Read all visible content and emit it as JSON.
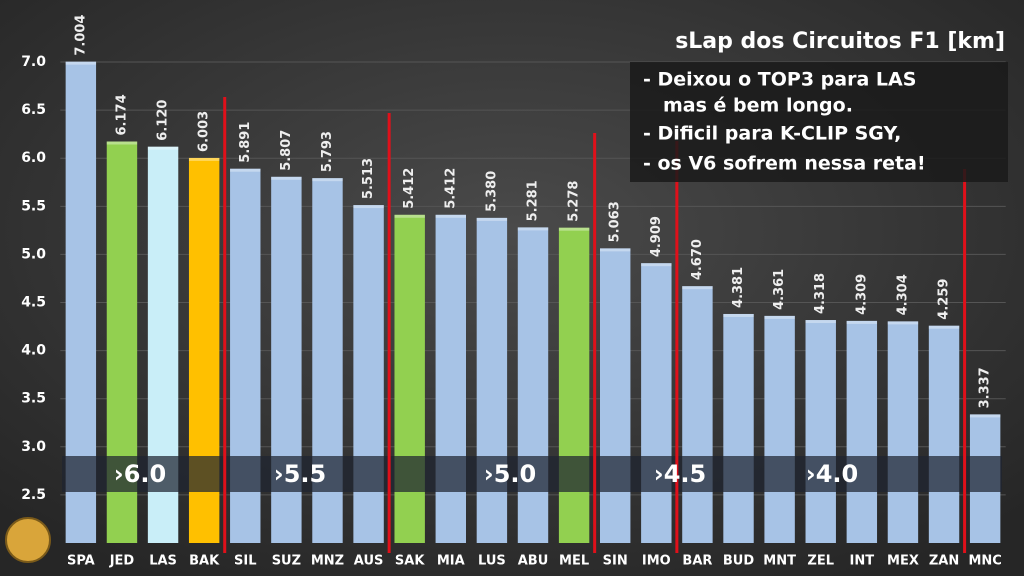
{
  "chart_data": {
    "type": "bar",
    "title": "sLap dos Circuitos F1 [km]",
    "annotations": [
      "- Deixou o TOP3 para LAS",
      "mas é bem longo.",
      "- Dificil para K-CLIP SGY,",
      "- os V6 sofrem nessa reta!"
    ],
    "group_labels": [
      "›6.0",
      "›5.5",
      "›5.0",
      "›4.5",
      "›4.0"
    ],
    "categories": [
      "SPA",
      "JED",
      "LAS",
      "BAK",
      "SIL",
      "SUZ",
      "MNZ",
      "AUS",
      "SAK",
      "MIA",
      "LUS",
      "ABU",
      "MEL",
      "SIN",
      "IMO",
      "BAR",
      "BUD",
      "MNT",
      "ZEL",
      "INT",
      "MEX",
      "ZAN",
      "MNC"
    ],
    "values": [
      7.004,
      6.174,
      6.12,
      6.003,
      5.891,
      5.807,
      5.793,
      5.513,
      5.412,
      5.412,
      5.38,
      5.281,
      5.278,
      5.063,
      4.909,
      4.67,
      4.381,
      4.361,
      4.318,
      4.309,
      4.304,
      4.259,
      3.337
    ],
    "value_labels": [
      "7.004",
      "6.174",
      "6.120",
      "6.003",
      "5.891",
      "5.807",
      "5.793",
      "5.513",
      "5.412",
      "5.412",
      "5.380",
      "5.281",
      "5.278",
      "5.063",
      "4.909",
      "4.670",
      "4.381",
      "4.361",
      "4.318",
      "4.309",
      "4.304",
      "4.259",
      "3.337"
    ],
    "colors": [
      "#a7c3e6",
      "#92d050",
      "#c9eef8",
      "#ffc000",
      "#a7c3e6",
      "#a7c3e6",
      "#a7c3e6",
      "#a7c3e6",
      "#92d050",
      "#a7c3e6",
      "#a7c3e6",
      "#a7c3e6",
      "#92d050",
      "#a7c3e6",
      "#a7c3e6",
      "#a7c3e6",
      "#a7c3e6",
      "#a7c3e6",
      "#a7c3e6",
      "#a7c3e6",
      "#a7c3e6",
      "#a7c3e6",
      "#a7c3e6"
    ],
    "ylim": [
      2.0,
      7.25
    ],
    "yticks": [
      2.5,
      {
        "value": 3,
        "label": "3.0"
      },
      3.5,
      {
        "value": 4,
        "label": "4.0"
      },
      4.5,
      {
        "value": 5,
        "label": "5.0"
      },
      5.5,
      {
        "value": 6,
        "label": "6.0"
      },
      6.5,
      {
        "value": 7,
        "label": "7.0"
      }
    ],
    "grid": true
  }
}
